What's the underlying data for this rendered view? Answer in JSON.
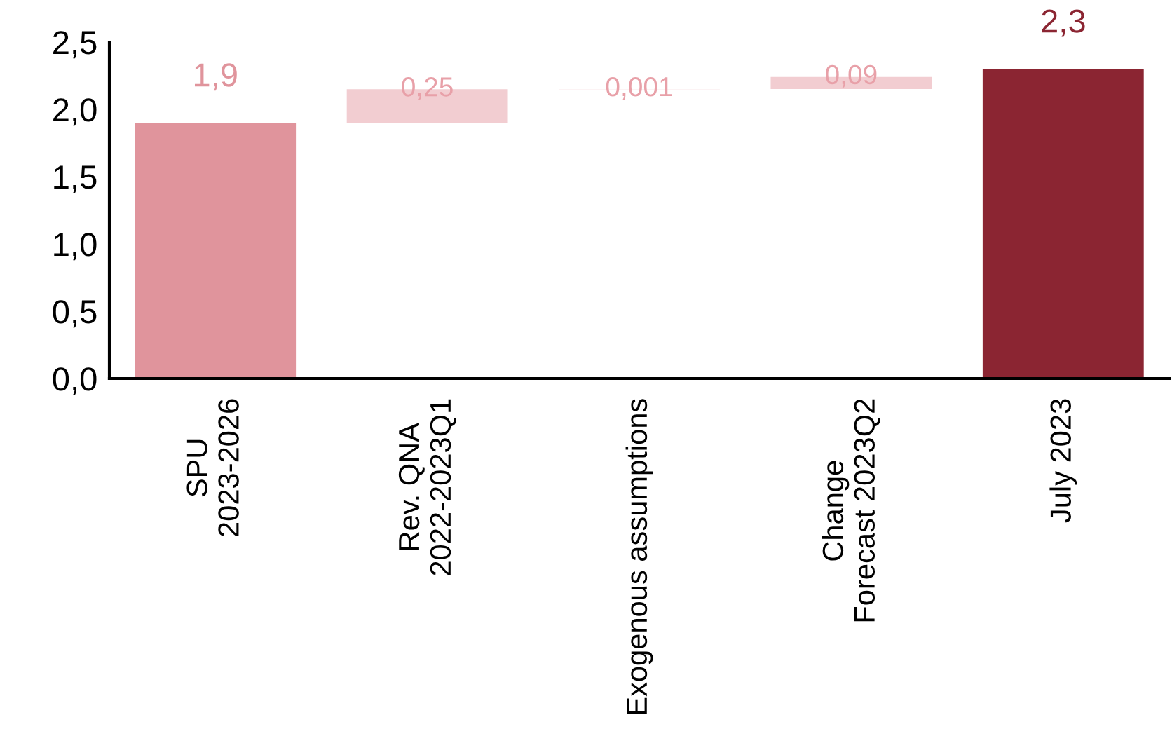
{
  "chart_data": {
    "type": "bar",
    "categories": [
      "SPU\n2023-2026",
      "Rev. QNA\n2022-2023Q1",
      "Exogenous assumptions",
      "Change\nForecast 2023Q2",
      "July 2023"
    ],
    "values": [
      1.9,
      0.25,
      0.001,
      0.09,
      2.3
    ],
    "base": [
      0,
      1.9,
      2.15,
      2.151,
      0
    ],
    "colors": [
      "#e0949c",
      "#f2cdd1",
      "#f2cdd1",
      "#f2cdd1",
      "#8b2532"
    ],
    "value_labels": [
      "1,9",
      "0,25",
      "0,001",
      "0,09",
      "2,3"
    ],
    "ylim": [
      0,
      2.5
    ],
    "yticks": [
      {
        "value": 0,
        "label": "0,0"
      },
      {
        "value": 0.5,
        "label": "0,5"
      },
      {
        "value": 1,
        "label": "1,0"
      },
      {
        "value": 1.5,
        "label": "1,5"
      },
      {
        "value": 2,
        "label": "2,0"
      },
      {
        "value": 2.5,
        "label": "2,5"
      }
    ],
    "grid": false,
    "legend": false
  }
}
